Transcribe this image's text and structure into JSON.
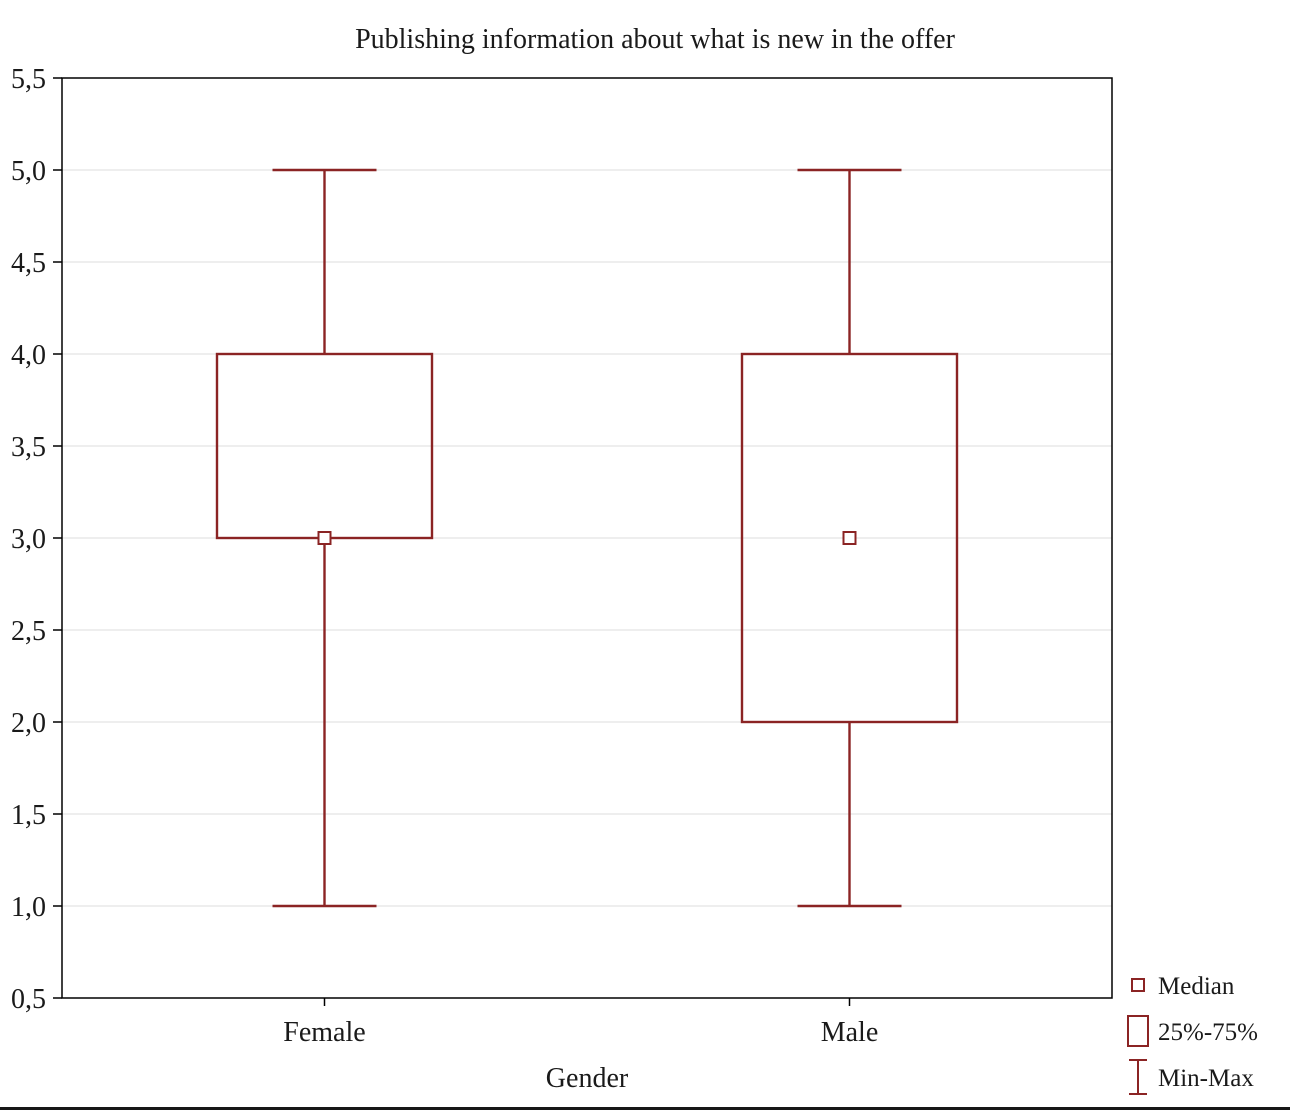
{
  "chart_data": {
    "type": "boxplot",
    "title": "Publishing information about what is new in the offer",
    "xlabel": "Gender",
    "ylabel": "",
    "categories": [
      "Female",
      "Male"
    ],
    "series": [
      {
        "name": "Female",
        "min": 1.0,
        "q1": 3.0,
        "median": 3.0,
        "q3": 4.0,
        "max": 5.0
      },
      {
        "name": "Male",
        "min": 1.0,
        "q1": 2.0,
        "median": 3.0,
        "q3": 4.0,
        "max": 5.0
      }
    ],
    "ylim": [
      0.5,
      5.5
    ],
    "yticks": [
      {
        "value": 0.5,
        "label": "0,5"
      },
      {
        "value": 1.0,
        "label": "1,0"
      },
      {
        "value": 1.5,
        "label": "1,5"
      },
      {
        "value": 2.0,
        "label": "2,0"
      },
      {
        "value": 2.5,
        "label": "2,5"
      },
      {
        "value": 3.0,
        "label": "3,0"
      },
      {
        "value": 3.5,
        "label": "3,5"
      },
      {
        "value": 4.0,
        "label": "4,0"
      },
      {
        "value": 4.5,
        "label": "4,5"
      },
      {
        "value": 5.0,
        "label": "5,0"
      },
      {
        "value": 5.5,
        "label": "5,5"
      }
    ],
    "grid": "horizontal",
    "legend": {
      "position": "bottom-right",
      "items": [
        {
          "icon": "median-square-icon",
          "label": "Median"
        },
        {
          "icon": "quartile-box-icon",
          "label": "25%-75%"
        },
        {
          "icon": "minmax-whisker-icon",
          "label": "Min-Max"
        }
      ]
    },
    "colors": {
      "box": "#8b2424",
      "grid": "#dcdcdc",
      "axis": "#000000",
      "text": "#1a1a1a",
      "background": "#ffffff"
    }
  }
}
